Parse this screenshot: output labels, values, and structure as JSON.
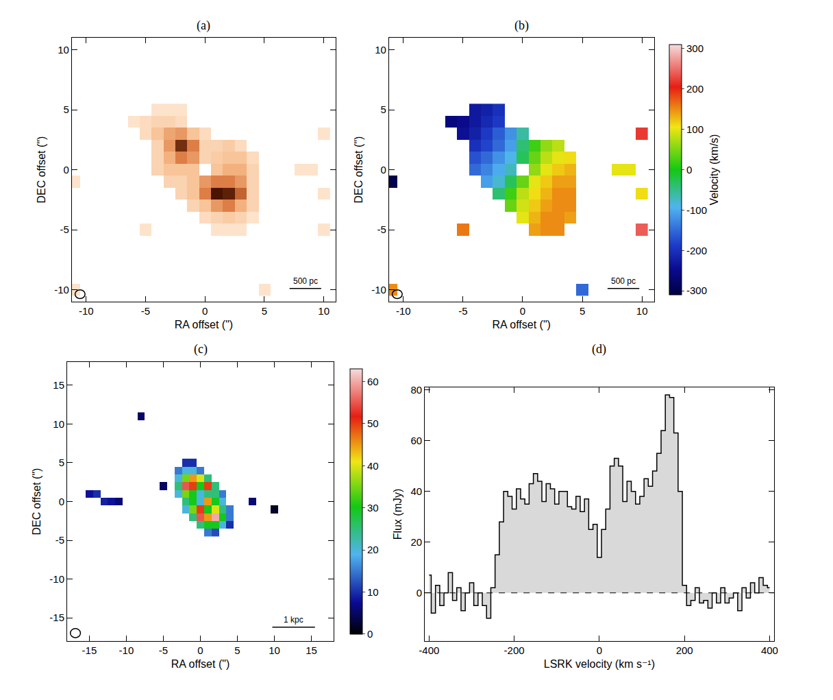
{
  "chart_data": [
    {
      "type": "heatmap",
      "title": "(a)",
      "xlabel": "RA offset (\")",
      "ylabel": "DEC offset (\")",
      "xlim": [
        -11.2,
        11
      ],
      "ylim": [
        -11,
        11
      ],
      "xticks": [
        -10,
        -5,
        0,
        5,
        10
      ],
      "yticks": [
        -10,
        -5,
        0,
        5,
        10
      ],
      "annotations": [
        "500 pc"
      ],
      "cells": [
        [
          -4,
          5,
          0.1
        ],
        [
          -3,
          5,
          0.1
        ],
        [
          -2,
          5,
          0.1
        ],
        [
          -6,
          4,
          0.1
        ],
        [
          -5,
          4,
          0.15
        ],
        [
          -4,
          4,
          0.2
        ],
        [
          -3,
          4,
          0.2
        ],
        [
          -2,
          4,
          0.15
        ],
        [
          -5,
          3,
          0.15
        ],
        [
          -4,
          3,
          0.3
        ],
        [
          -3,
          3,
          0.45
        ],
        [
          -2,
          3,
          0.5
        ],
        [
          -1,
          3,
          0.3
        ],
        [
          0,
          3,
          0.15
        ],
        [
          -4,
          2,
          0.2
        ],
        [
          -3,
          2,
          0.5
        ],
        [
          -2,
          2,
          0.9
        ],
        [
          -1,
          2,
          0.6
        ],
        [
          0,
          2,
          0.2
        ],
        [
          1,
          2,
          0.2
        ],
        [
          2,
          2,
          0.25
        ],
        [
          3,
          2,
          0.15
        ],
        [
          -4,
          1,
          0.2
        ],
        [
          -3,
          1,
          0.4
        ],
        [
          -2,
          1,
          0.6
        ],
        [
          -1,
          1,
          0.5
        ],
        [
          0,
          1,
          0.2
        ],
        [
          1,
          1,
          0.25
        ],
        [
          2,
          1,
          0.3
        ],
        [
          3,
          1,
          0.3
        ],
        [
          4,
          1,
          0.15
        ],
        [
          -4,
          0,
          0.2
        ],
        [
          -3,
          0,
          0.3
        ],
        [
          -2,
          0,
          0.3
        ],
        [
          -1,
          0,
          0.3
        ],
        [
          1,
          0,
          0.3
        ],
        [
          2,
          0,
          0.4
        ],
        [
          3,
          0,
          0.4
        ],
        [
          4,
          0,
          0.2
        ],
        [
          -3,
          -1,
          0.2
        ],
        [
          -2,
          -1,
          0.2
        ],
        [
          -1,
          -1,
          0.3
        ],
        [
          0,
          -1,
          0.5
        ],
        [
          1,
          -1,
          0.6
        ],
        [
          2,
          -1,
          0.6
        ],
        [
          3,
          -1,
          0.5
        ],
        [
          4,
          -1,
          0.2
        ],
        [
          -2,
          -2,
          0.2
        ],
        [
          -1,
          -2,
          0.3
        ],
        [
          0,
          -2,
          0.6
        ],
        [
          1,
          -2,
          1
        ],
        [
          2,
          -2,
          0.95
        ],
        [
          3,
          -2,
          0.7
        ],
        [
          4,
          -2,
          0.2
        ],
        [
          -1,
          -3,
          0.2
        ],
        [
          0,
          -3,
          0.3
        ],
        [
          1,
          -3,
          0.5
        ],
        [
          2,
          -3,
          0.6
        ],
        [
          3,
          -3,
          0.4
        ],
        [
          4,
          -3,
          0.2
        ],
        [
          0,
          -4,
          0.15
        ],
        [
          1,
          -4,
          0.2
        ],
        [
          2,
          -4,
          0.25
        ],
        [
          3,
          -4,
          0.2
        ],
        [
          4,
          -4,
          0.1
        ],
        [
          1,
          -5,
          0.1
        ],
        [
          2,
          -5,
          0.1
        ],
        [
          3,
          -5,
          0.1
        ],
        [
          -11,
          -1,
          0.1
        ],
        [
          -11,
          -10,
          0.1
        ],
        [
          -5,
          -5,
          0.1
        ],
        [
          10,
          3,
          0.1
        ],
        [
          8,
          0,
          0.1
        ],
        [
          9,
          0,
          0.1
        ],
        [
          10,
          -2,
          0.1
        ],
        [
          10,
          -5,
          0.1
        ],
        [
          5,
          -10,
          0.1
        ]
      ]
    },
    {
      "type": "heatmap",
      "title": "(b)",
      "xlabel": "RA offset (\")",
      "ylabel": "DEC offset (\")",
      "xlim": [
        -11.2,
        11
      ],
      "ylim": [
        -11,
        11
      ],
      "xticks": [
        -10,
        -5,
        0,
        5,
        10
      ],
      "yticks": [
        -10,
        -5,
        0,
        5,
        10
      ],
      "annotations": [
        "500 pc"
      ],
      "colorbar_label": "Velocity (km/s)",
      "zlim": [
        -310,
        310
      ],
      "zticks": [
        -300,
        -200,
        -100,
        0,
        100,
        200,
        300
      ],
      "cells": [
        [
          -4,
          5,
          -230
        ],
        [
          -3,
          5,
          -220
        ],
        [
          -2,
          5,
          -200
        ],
        [
          -6,
          4,
          -260
        ],
        [
          -5,
          4,
          -250
        ],
        [
          -4,
          4,
          -230
        ],
        [
          -3,
          4,
          -210
        ],
        [
          -2,
          4,
          -190
        ],
        [
          -5,
          3,
          -240
        ],
        [
          -4,
          3,
          -220
        ],
        [
          -3,
          3,
          -190
        ],
        [
          -2,
          3,
          -160
        ],
        [
          -1,
          3,
          -120
        ],
        [
          0,
          3,
          -60
        ],
        [
          -4,
          2,
          -200
        ],
        [
          -3,
          2,
          -180
        ],
        [
          -2,
          2,
          -150
        ],
        [
          -1,
          2,
          -110
        ],
        [
          0,
          2,
          -40
        ],
        [
          1,
          2,
          20
        ],
        [
          2,
          2,
          60
        ],
        [
          3,
          2,
          80
        ],
        [
          -4,
          1,
          -170
        ],
        [
          -3,
          1,
          -150
        ],
        [
          -2,
          1,
          -120
        ],
        [
          -1,
          1,
          -90
        ],
        [
          0,
          1,
          -30
        ],
        [
          1,
          1,
          40
        ],
        [
          2,
          1,
          80
        ],
        [
          3,
          1,
          100
        ],
        [
          4,
          1,
          110
        ],
        [
          -4,
          0,
          -150
        ],
        [
          -3,
          0,
          -130
        ],
        [
          -2,
          0,
          -100
        ],
        [
          -1,
          0,
          -70
        ],
        [
          1,
          0,
          60
        ],
        [
          2,
          0,
          100
        ],
        [
          3,
          0,
          120
        ],
        [
          4,
          0,
          130
        ],
        [
          -3,
          -1,
          -110
        ],
        [
          -2,
          -1,
          -80
        ],
        [
          -1,
          -1,
          -30
        ],
        [
          0,
          -1,
          40
        ],
        [
          1,
          -1,
          100
        ],
        [
          2,
          -1,
          120
        ],
        [
          3,
          -1,
          140
        ],
        [
          4,
          -1,
          140
        ],
        [
          -2,
          -2,
          -40
        ],
        [
          -1,
          -2,
          20
        ],
        [
          0,
          -2,
          80
        ],
        [
          1,
          -2,
          110
        ],
        [
          2,
          -2,
          130
        ],
        [
          3,
          -2,
          150
        ],
        [
          4,
          -2,
          150
        ],
        [
          -1,
          -3,
          40
        ],
        [
          0,
          -3,
          90
        ],
        [
          1,
          -3,
          120
        ],
        [
          2,
          -3,
          140
        ],
        [
          3,
          -3,
          150
        ],
        [
          4,
          -3,
          150
        ],
        [
          0,
          -4,
          100
        ],
        [
          1,
          -4,
          130
        ],
        [
          2,
          -4,
          150
        ],
        [
          3,
          -4,
          150
        ],
        [
          4,
          -4,
          140
        ],
        [
          1,
          -5,
          140
        ],
        [
          2,
          -5,
          150
        ],
        [
          3,
          -5,
          150
        ],
        [
          -11,
          -1,
          -300
        ],
        [
          -11,
          -10,
          150
        ],
        [
          -5,
          -5,
          160
        ],
        [
          10,
          3,
          220
        ],
        [
          8,
          0,
          100
        ],
        [
          9,
          0,
          100
        ],
        [
          10,
          -2,
          110
        ],
        [
          10,
          -5,
          240
        ],
        [
          5,
          -10,
          -150
        ]
      ]
    },
    {
      "type": "heatmap",
      "title": "(c)",
      "xlabel": "RA offset (\")",
      "ylabel": "DEC offset (\")",
      "xlim": [
        -18,
        18
      ],
      "ylim": [
        -18,
        18
      ],
      "xticks": [
        -15,
        -10,
        -5,
        0,
        5,
        10,
        15
      ],
      "yticks": [
        -15,
        -10,
        -5,
        0,
        5,
        10,
        15
      ],
      "annotations": [
        "1 kpc"
      ],
      "zlim": [
        0,
        63
      ],
      "zticks": [
        0,
        10,
        20,
        30,
        40,
        50,
        60
      ],
      "cells": [
        [
          -2,
          5,
          10
        ],
        [
          -1,
          5,
          10
        ],
        [
          -3,
          4,
          15
        ],
        [
          -2,
          4,
          20
        ],
        [
          -1,
          4,
          20
        ],
        [
          0,
          4,
          15
        ],
        [
          -3,
          3,
          20
        ],
        [
          -2,
          3,
          35
        ],
        [
          -1,
          3,
          45
        ],
        [
          0,
          3,
          40
        ],
        [
          1,
          3,
          25
        ],
        [
          -3,
          2,
          25
        ],
        [
          -2,
          2,
          55
        ],
        [
          -1,
          2,
          50
        ],
        [
          0,
          2,
          30
        ],
        [
          1,
          2,
          50
        ],
        [
          2,
          2,
          25
        ],
        [
          -3,
          1,
          20
        ],
        [
          -2,
          1,
          35
        ],
        [
          -1,
          1,
          30
        ],
        [
          0,
          1,
          20
        ],
        [
          1,
          1,
          25
        ],
        [
          2,
          1,
          25
        ],
        [
          3,
          1,
          15
        ],
        [
          -2,
          0,
          25
        ],
        [
          -1,
          0,
          30
        ],
        [
          0,
          0,
          20
        ],
        [
          1,
          0,
          45
        ],
        [
          2,
          0,
          30
        ],
        [
          3,
          0,
          20
        ],
        [
          -2,
          -1,
          20
        ],
        [
          -1,
          -1,
          35
        ],
        [
          0,
          -1,
          50
        ],
        [
          1,
          -1,
          30
        ],
        [
          2,
          -1,
          40
        ],
        [
          3,
          -1,
          25
        ],
        [
          4,
          -1,
          15
        ],
        [
          -1,
          -2,
          25
        ],
        [
          0,
          -2,
          55
        ],
        [
          1,
          -2,
          45
        ],
        [
          2,
          -2,
          60
        ],
        [
          3,
          -2,
          30
        ],
        [
          4,
          -2,
          15
        ],
        [
          0,
          -3,
          25
        ],
        [
          1,
          -3,
          30
        ],
        [
          2,
          -3,
          30
        ],
        [
          3,
          -3,
          20
        ],
        [
          4,
          -3,
          10
        ],
        [
          1,
          -4,
          15
        ],
        [
          2,
          -4,
          12
        ],
        [
          -15,
          1,
          8
        ],
        [
          -14,
          1,
          10
        ],
        [
          -13,
          0,
          9
        ],
        [
          -12,
          0,
          8
        ],
        [
          -11,
          0,
          6
        ],
        [
          -8,
          11,
          5
        ],
        [
          -5,
          2,
          5
        ],
        [
          7,
          0,
          6
        ],
        [
          10,
          -1,
          2
        ]
      ]
    },
    {
      "type": "line",
      "title": "(d)",
      "xlabel": "LSRK velocity (km s⁻¹)",
      "ylabel": "Flux (mJy)",
      "line_style": "steps",
      "xlim": [
        -410,
        410
      ],
      "ylim": [
        -19,
        81
      ],
      "xticks": [
        -400,
        -200,
        0,
        200,
        400
      ],
      "yticks": [
        0,
        20,
        40,
        60,
        80
      ],
      "x": [
        -400,
        -390,
        -380,
        -370,
        -360,
        -350,
        -340,
        -330,
        -320,
        -310,
        -300,
        -290,
        -280,
        -270,
        -260,
        -250,
        -240,
        -230,
        -220,
        -210,
        -200,
        -190,
        -180,
        -170,
        -160,
        -150,
        -140,
        -130,
        -120,
        -110,
        -100,
        -90,
        -80,
        -70,
        -60,
        -50,
        -40,
        -30,
        -20,
        -10,
        0,
        10,
        20,
        30,
        40,
        50,
        60,
        70,
        80,
        90,
        100,
        110,
        120,
        130,
        140,
        150,
        160,
        170,
        180,
        190,
        200,
        210,
        220,
        230,
        240,
        250,
        260,
        270,
        280,
        290,
        300,
        310,
        320,
        330,
        340,
        350,
        360,
        370,
        380,
        390,
        400
      ],
      "values": [
        7,
        -8,
        3,
        -5,
        0,
        8,
        -3,
        2,
        -7,
        0,
        4,
        -5,
        0,
        -5,
        -10,
        2,
        15,
        28,
        40,
        38,
        33,
        41,
        37,
        35,
        43,
        47,
        44,
        36,
        43,
        41,
        35,
        40,
        40,
        34,
        33,
        38,
        32,
        37,
        25,
        27,
        14,
        25,
        33,
        50,
        53,
        50,
        36,
        44,
        40,
        35,
        38,
        45,
        42,
        48,
        55,
        64,
        78,
        77,
        63,
        40,
        3,
        -5,
        -3,
        2,
        -4,
        -3,
        -6,
        0,
        -4,
        2,
        -4,
        -2,
        0,
        -7,
        2,
        -2,
        4,
        0,
        6,
        3,
        2
      ]
    }
  ]
}
